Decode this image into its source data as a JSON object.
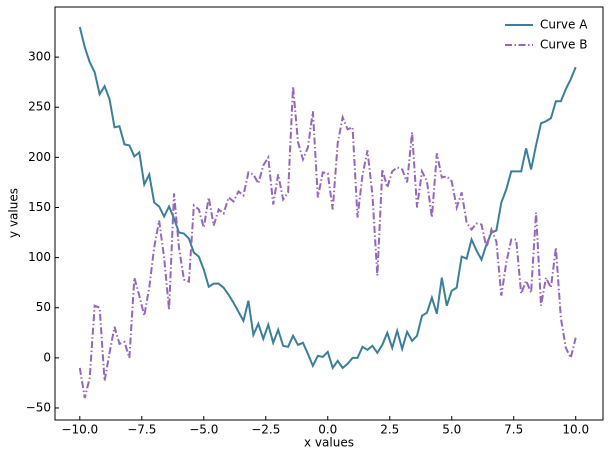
{
  "chart_data": {
    "type": "line",
    "x_label": "x values",
    "y_label": "y values",
    "x": [
      -10,
      -9.8,
      -9.6,
      -9.4,
      -9.2,
      -9,
      -8.8,
      -8.6,
      -8.4,
      -8.2,
      -8,
      -7.8,
      -7.6,
      -7.4,
      -7.2,
      -7,
      -6.8,
      -6.6,
      -6.4,
      -6.2,
      -6,
      -5.8,
      -5.6,
      -5.4,
      -5.2,
      -5,
      -4.8,
      -4.6,
      -4.4,
      -4.2,
      -4,
      -3.8,
      -3.6,
      -3.4,
      -3.2,
      -3,
      -2.8,
      -2.6,
      -2.4,
      -2.2,
      -2,
      -1.8,
      -1.6,
      -1.4,
      -1.2,
      -1,
      -0.8,
      -0.6,
      -0.4,
      -0.2,
      0,
      0.2,
      0.4,
      0.6,
      0.8,
      1,
      1.2,
      1.4,
      1.6,
      1.8,
      2,
      2.2,
      2.4,
      2.6,
      2.8,
      3,
      3.2,
      3.4,
      3.6,
      3.8,
      4,
      4.2,
      4.4,
      4.6,
      4.8,
      5,
      5.2,
      5.4,
      5.6,
      5.8,
      6,
      6.2,
      6.4,
      6.6,
      6.8,
      7,
      7.2,
      7.4,
      7.6,
      7.8,
      8,
      8.2,
      8.4,
      8.6,
      8.8,
      9,
      9.2,
      9.4,
      9.6,
      9.8,
      10
    ],
    "series": [
      {
        "name": "Curve A",
        "color": "#3a7f9a",
        "dash": "solid",
        "values": [
          330,
          310,
          295,
          285,
          263,
          271,
          258,
          230,
          231,
          213,
          212,
          201,
          205,
          173,
          183,
          155,
          151,
          141,
          151,
          139,
          125,
          124,
          119,
          105,
          101,
          88,
          71,
          74,
          74,
          70,
          63,
          55,
          46,
          37,
          57,
          23,
          34,
          19,
          33,
          15,
          28,
          12,
          11,
          22,
          13,
          15,
          4,
          -8,
          2,
          1,
          6,
          -10,
          -3,
          -10,
          -6,
          0,
          0,
          11,
          8,
          12,
          5,
          13,
          25,
          10,
          27,
          9,
          26,
          17,
          22,
          42,
          45,
          60,
          44,
          80,
          52,
          67,
          70,
          101,
          99,
          118,
          107,
          98,
          113,
          125,
          127,
          155,
          168,
          186,
          186,
          186,
          209,
          188,
          212,
          234,
          236,
          239,
          256,
          256,
          268,
          278,
          290
        ]
      },
      {
        "name": "Curve B",
        "color": "#9467bd",
        "dash": "dashdot",
        "values": [
          -10,
          -40,
          -20,
          52,
          50,
          -23,
          5,
          31,
          14,
          16,
          0,
          80,
          62,
          42,
          70,
          110,
          137,
          100,
          48,
          164,
          110,
          78,
          76,
          152,
          148,
          130,
          160,
          132,
          148,
          144,
          160,
          156,
          166,
          162,
          185,
          183,
          174,
          192,
          200,
          153,
          183,
          158,
          165,
          271,
          215,
          198,
          210,
          246,
          160,
          185,
          184,
          148,
          214,
          240,
          228,
          230,
          140,
          182,
          207,
          163,
          82,
          188,
          170,
          186,
          190,
          188,
          175,
          225,
          150,
          186,
          176,
          140,
          204,
          180,
          181,
          176,
          150,
          165,
          135,
          128,
          134,
          133,
          110,
          128,
          116,
          62,
          95,
          118,
          118,
          64,
          77,
          65,
          145,
          52,
          80,
          70,
          110,
          40,
          10,
          0,
          20
        ]
      }
    ],
    "xlim": [
      -11,
      11.1
    ],
    "ylim": [
      -62,
      350
    ],
    "xticks": [
      {
        "value": -10,
        "label": "−10.0"
      },
      {
        "value": -7.5,
        "label": "−7.5"
      },
      {
        "value": -5,
        "label": "−5.0"
      },
      {
        "value": -2.5,
        "label": "−2.5"
      },
      {
        "value": 0,
        "label": "0.0"
      },
      2.5,
      {
        "value": 5,
        "label": "5.0"
      },
      7.5,
      {
        "value": 10,
        "label": "10.0"
      }
    ],
    "yticks": [
      {
        "value": -50,
        "label": "−50"
      },
      0,
      50,
      100,
      150,
      200,
      250,
      300
    ],
    "legend": "upper right"
  }
}
